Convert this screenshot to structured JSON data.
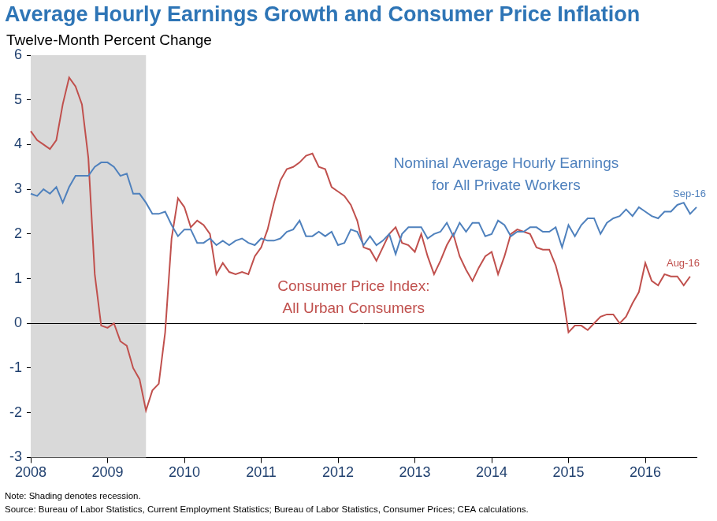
{
  "chart_data": {
    "type": "line",
    "title": "Average Hourly Earnings Growth and Consumer Price Inflation",
    "subtitle": "Twelve-Month Percent Change",
    "note": "Note: Shading denotes recession.",
    "source": "Source: Bureau of Labor Statistics, Current Employment Statistics; Bureau of Labor Statistics, Consumer Prices; CEA calculations.",
    "categories": [
      "2008",
      null,
      null,
      null,
      null,
      null,
      null,
      null,
      null,
      null,
      null,
      null,
      "2009",
      null,
      null,
      null,
      null,
      null,
      null,
      null,
      null,
      null,
      null,
      null,
      "2010",
      null,
      null,
      null,
      null,
      null,
      null,
      null,
      null,
      null,
      null,
      null,
      "2011",
      null,
      null,
      null,
      null,
      null,
      null,
      null,
      null,
      null,
      null,
      null,
      "2012",
      null,
      null,
      null,
      null,
      null,
      null,
      null,
      null,
      null,
      null,
      null,
      "2013",
      null,
      null,
      null,
      null,
      null,
      null,
      null,
      null,
      null,
      null,
      null,
      "2014",
      null,
      null,
      null,
      null,
      null,
      null,
      null,
      null,
      null,
      null,
      null,
      "2015",
      null,
      null,
      null,
      null,
      null,
      null,
      null,
      null,
      null,
      null,
      null,
      "2016",
      null,
      null,
      null,
      null,
      null,
      null,
      null,
      null
    ],
    "recession": [
      true,
      true,
      true,
      true,
      true,
      true,
      true,
      true,
      true,
      true,
      true,
      true,
      true,
      true,
      true,
      true,
      true,
      true,
      false,
      false,
      false,
      false,
      false,
      false,
      false,
      false,
      false,
      false,
      false,
      false,
      false,
      false,
      false,
      false,
      false,
      false,
      false,
      false,
      false,
      false,
      false,
      false,
      false,
      false,
      false,
      false,
      false,
      false,
      false,
      false,
      false,
      false,
      false,
      false,
      false,
      false,
      false,
      false,
      false,
      false,
      false,
      false,
      false,
      false,
      false,
      false,
      false,
      false,
      false,
      false,
      false,
      false,
      false,
      false,
      false,
      false,
      false,
      false,
      false,
      false,
      false,
      false,
      false,
      false,
      false,
      false,
      false,
      false,
      false,
      false,
      false,
      false,
      false,
      false,
      false,
      false,
      false,
      false,
      false,
      false,
      false,
      false,
      false,
      false,
      false
    ],
    "series": [
      {
        "name": "Nominal Average Hourly Earnings\nfor All Private Workers",
        "end_label": "Sep-16",
        "color": "#4f81bd",
        "marker": "none",
        "line_style": "solid",
        "values": [
          2.9,
          2.85,
          3.0,
          2.9,
          3.05,
          2.7,
          3.05,
          3.3,
          3.3,
          3.3,
          3.5,
          3.6,
          3.6,
          3.5,
          3.3,
          3.35,
          2.9,
          2.9,
          2.7,
          2.45,
          2.45,
          2.5,
          2.2,
          1.95,
          2.1,
          2.1,
          1.8,
          1.8,
          1.9,
          1.75,
          1.85,
          1.75,
          1.85,
          1.9,
          1.8,
          1.75,
          1.9,
          1.85,
          1.85,
          1.9,
          2.05,
          2.1,
          2.3,
          1.95,
          1.95,
          2.05,
          1.95,
          2.05,
          1.75,
          1.8,
          2.1,
          2.05,
          1.75,
          1.95,
          1.75,
          1.85,
          2.0,
          1.55,
          2.0,
          2.15,
          2.15,
          2.15,
          1.9,
          2.0,
          2.05,
          2.25,
          1.95,
          2.25,
          2.05,
          2.25,
          2.25,
          1.95,
          2.0,
          2.3,
          2.2,
          1.95,
          2.05,
          2.05,
          2.15,
          2.15,
          2.05,
          2.05,
          2.15,
          1.7,
          2.2,
          1.95,
          2.2,
          2.35,
          2.35,
          2.0,
          2.25,
          2.35,
          2.4,
          2.55,
          2.4,
          2.6,
          2.5,
          2.4,
          2.35,
          2.5,
          2.5,
          2.65,
          2.7,
          2.45,
          2.6
        ]
      },
      {
        "name": "Consumer Price Index:\nAll Urban Consumers",
        "end_label": "Aug-16",
        "color": "#c0504d",
        "marker": "none",
        "line_style": "solid",
        "values": [
          4.3,
          4.1,
          4.0,
          3.9,
          4.1,
          4.9,
          5.5,
          5.3,
          4.9,
          3.7,
          1.1,
          -0.05,
          -0.1,
          0.0,
          -0.4,
          -0.5,
          -1.0,
          -1.25,
          -1.95,
          -1.5,
          -1.35,
          -0.2,
          1.9,
          2.8,
          2.6,
          2.15,
          2.3,
          2.2,
          2.0,
          1.1,
          1.35,
          1.15,
          1.1,
          1.15,
          1.1,
          1.5,
          1.7,
          2.1,
          2.7,
          3.2,
          3.45,
          3.5,
          3.6,
          3.75,
          3.8,
          3.5,
          3.45,
          3.05,
          2.95,
          2.85,
          2.65,
          2.3,
          1.7,
          1.65,
          1.4,
          1.7,
          2.0,
          2.15,
          1.8,
          1.75,
          1.6,
          2.0,
          1.5,
          1.1,
          1.4,
          1.75,
          2.0,
          1.5,
          1.2,
          0.95,
          1.25,
          1.5,
          1.6,
          1.1,
          1.5,
          2.0,
          2.1,
          2.05,
          2.0,
          1.7,
          1.65,
          1.65,
          1.3,
          0.75,
          -0.2,
          -0.05,
          -0.05,
          -0.15,
          0.0,
          0.15,
          0.2,
          0.2,
          0.0,
          0.15,
          0.45,
          0.7,
          1.35,
          0.95,
          0.85,
          1.1,
          1.05,
          1.05,
          0.85,
          1.05,
          null
        ]
      }
    ],
    "ylim": [
      -3,
      6
    ],
    "yticks": [
      -3,
      -2,
      -1,
      0,
      1,
      2,
      3,
      4,
      5,
      6
    ],
    "reference_line": 0,
    "grid": false
  }
}
